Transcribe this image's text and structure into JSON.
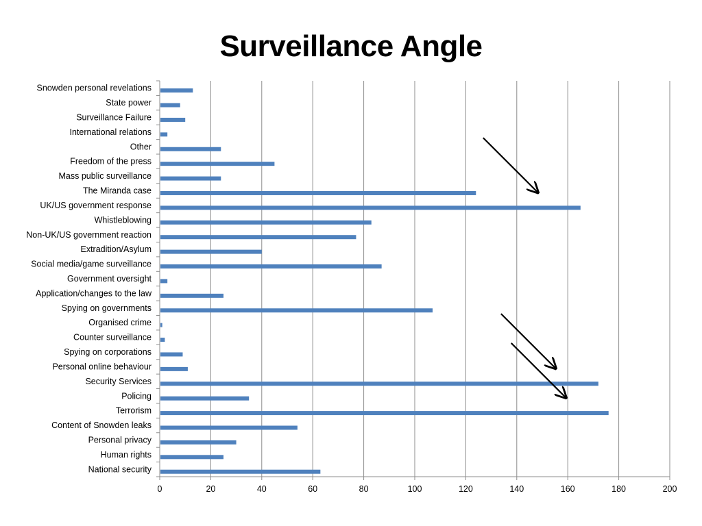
{
  "chart_data": {
    "type": "bar",
    "orientation": "horizontal",
    "title": "Surveillance Angle",
    "xlabel": "",
    "ylabel": "",
    "xlim": [
      0,
      200
    ],
    "x_ticks": [
      0,
      20,
      40,
      60,
      80,
      100,
      120,
      140,
      160,
      180,
      200
    ],
    "grid": "vertical",
    "bar_color": "#4F81BD",
    "categories": [
      "Snowden personal revelations",
      "State power",
      "Surveillance Failure",
      "International relations",
      "Other",
      "Freedom of the press",
      "Mass public surveillance",
      "The Miranda case",
      "UK/US government response",
      "Whistleblowing",
      "Non-UK/US government reaction",
      "Extradition/Asylum",
      "Social media/game surveillance",
      "Government oversight",
      "Application/changes to the law",
      "Spying on governments",
      "Organised crime",
      "Counter surveillance",
      "Spying on corporations",
      "Personal online behaviour",
      "Security Services",
      "Policing",
      "Terrorism",
      "Content of Snowden leaks",
      "Personal privacy",
      "Human rights",
      "National security"
    ],
    "values": [
      13,
      8,
      10,
      3,
      24,
      45,
      24,
      124,
      165,
      83,
      77,
      40,
      87,
      3,
      25,
      107,
      1,
      2,
      9,
      11,
      172,
      35,
      176,
      54,
      30,
      25,
      63
    ],
    "annotations": [
      {
        "type": "arrow",
        "points_to": "UK/US government response"
      },
      {
        "type": "arrow",
        "points_to": "Security Services"
      },
      {
        "type": "arrow",
        "points_to": "Terrorism"
      }
    ]
  }
}
